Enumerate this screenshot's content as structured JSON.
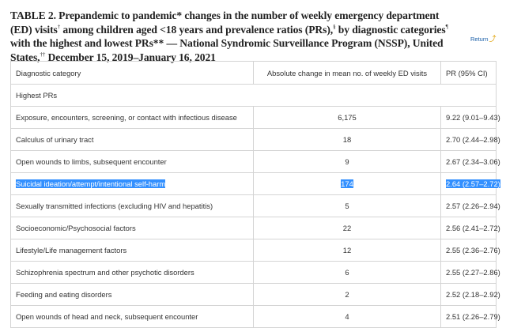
{
  "caption": {
    "part1": "TABLE 2. Prepandemic to pandemic* changes in the number of weekly emergency department (ED) visits",
    "sup1": "†",
    "part2": " among children aged <18 years and prevalence ratios (PRs),",
    "sup2": "§",
    "part3": " by diagnostic categories",
    "sup3": "¶",
    "part4": " with the highest and lowest PRs** — National Syndromic Surveillance Program (NSSP), United States,",
    "sup4": "††",
    "part5": " December 15, 2019–January 16, 2021"
  },
  "return_link": {
    "label": "Return",
    "icon": "return-arrow-icon"
  },
  "table": {
    "headers": {
      "category": "Diagnostic category",
      "change": "Absolute change in mean no. of weekly ED visits",
      "pr": "PR (95% CI)"
    },
    "section_label": "Highest PRs",
    "rows": [
      {
        "category": "Exposure, encounters, screening, or contact with infectious disease",
        "change": "6,175",
        "pr": "9.22 (9.01–9.43)"
      },
      {
        "category": "Calculus of urinary tract",
        "change": "18",
        "pr": "2.70 (2.44–2.98)"
      },
      {
        "category": "Open wounds to limbs, subsequent encounter",
        "change": "9",
        "pr": "2.67 (2.34–3.06)"
      },
      {
        "category": "Suicidal ideation/attempt/intentional self-harm",
        "change": "174",
        "pr": "2.64 (2.57–2.72)"
      },
      {
        "category": "Sexually transmitted infections (excluding HIV and hepatitis)",
        "change": "5",
        "pr": "2.57 (2.26–2.94)"
      },
      {
        "category": "Socioeconomic/Psychosocial factors",
        "change": "22",
        "pr": "2.56 (2.41–2.72)"
      },
      {
        "category": "Lifestyle/Life management factors",
        "change": "12",
        "pr": "2.55 (2.36–2.76)"
      },
      {
        "category": "Schizophrenia spectrum and other psychotic disorders",
        "change": "6",
        "pr": "2.55 (2.27–2.86)"
      },
      {
        "category": "Feeding and eating disorders",
        "change": "2",
        "pr": "2.52 (2.18–2.92)"
      },
      {
        "category": "Open wounds of head and neck, subsequent encounter",
        "change": "4",
        "pr": "2.51 (2.26–2.79)"
      }
    ],
    "selection_highlight_color": "#3390ff"
  }
}
